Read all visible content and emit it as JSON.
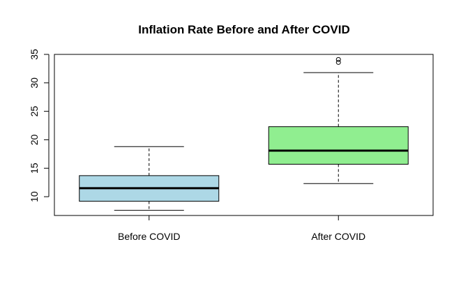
{
  "chart_data": {
    "type": "box",
    "title": "Inflation Rate Before and After COVID",
    "xlabel": "",
    "ylabel": "",
    "ylim": [
      6.7,
      35
    ],
    "yticks": [
      10,
      15,
      20,
      25,
      30,
      35
    ],
    "categories": [
      "Before COVID",
      "After COVID"
    ],
    "boxes": [
      {
        "category": "Before COVID",
        "whisker_low": 7.6,
        "q1": 9.2,
        "median": 11.5,
        "q3": 13.7,
        "whisker_high": 18.8,
        "outliers": [],
        "color": "#add8e6"
      },
      {
        "category": "After COVID",
        "whisker_low": 12.3,
        "q1": 15.7,
        "median": 18.1,
        "q3": 22.3,
        "whisker_high": 31.8,
        "outliers": [
          33.6,
          34.1
        ],
        "color": "#90ee90"
      }
    ],
    "grid": false,
    "legend": "none"
  }
}
